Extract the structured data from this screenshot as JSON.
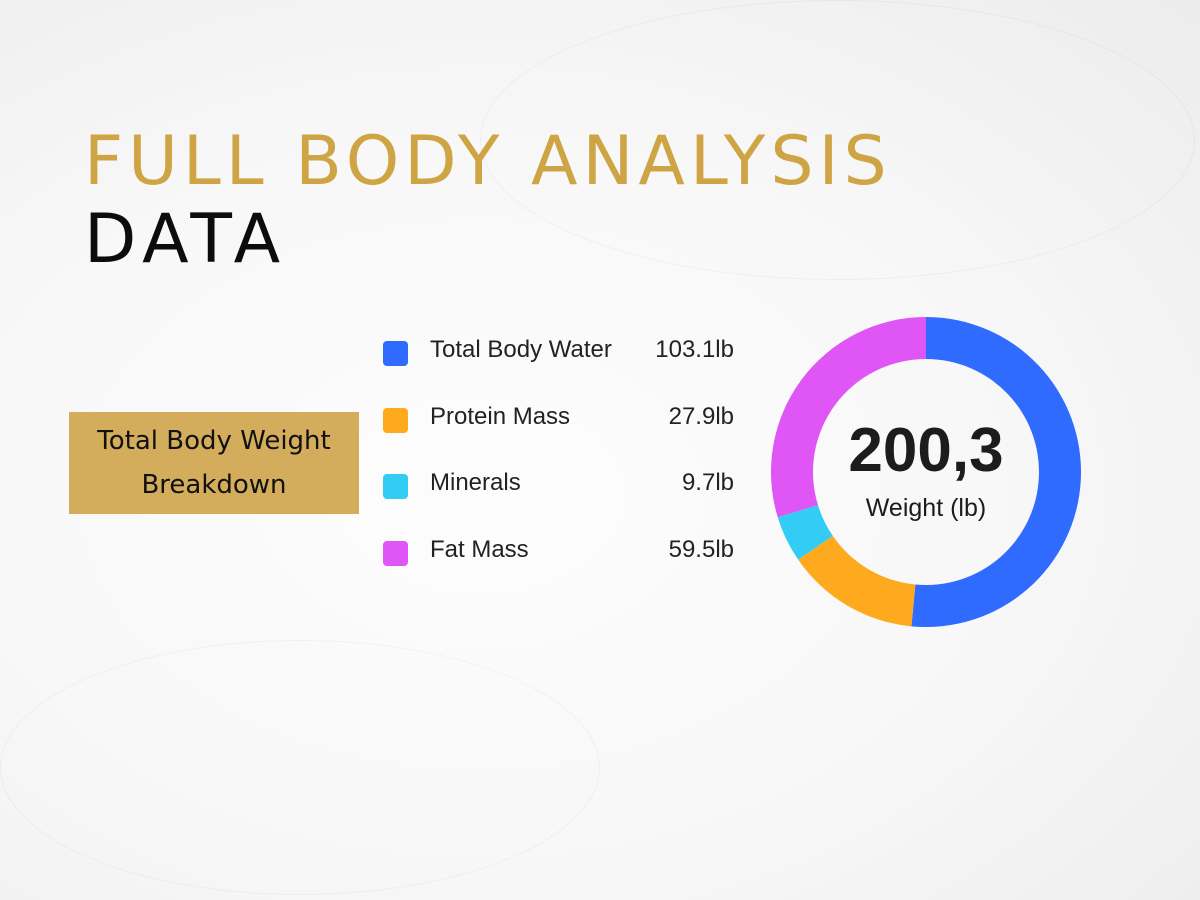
{
  "header": {
    "title_line1": "FULL BODY ANALYSIS",
    "title_line2": "DATA"
  },
  "section_label": {
    "line1": "Total Body Weight",
    "line2": "Breakdown"
  },
  "chart_data": {
    "type": "pie",
    "donut": true,
    "direction": "clockwise-from-top",
    "categories": [
      "Total Body Water",
      "Protein Mass",
      "Minerals",
      "Fat Mass"
    ],
    "values": [
      103.1,
      27.9,
      9.7,
      59.5
    ],
    "value_labels": [
      "103.1lb",
      "27.9lb",
      "9.7lb",
      "59.5lb"
    ],
    "colors": [
      "#2f6bff",
      "#ffa91f",
      "#33ccf5",
      "#e055f5"
    ],
    "center_value": "200,3",
    "center_label": "Weight (lb)",
    "legend_position": "left"
  }
}
